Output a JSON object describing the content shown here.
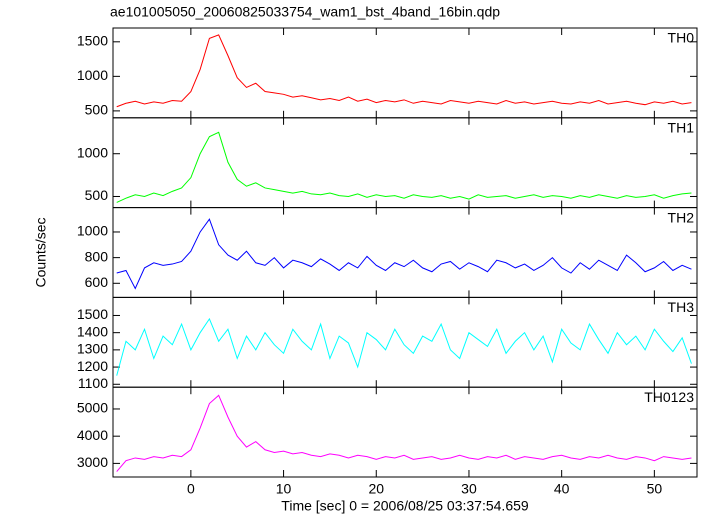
{
  "chart_data": [
    {
      "type": "line",
      "title": "ae101005050_20060825033754_wam1_bst_4band_16bin.qdp",
      "label": "TH0",
      "color": "#ff0000",
      "x": [
        -8,
        -7,
        -6,
        -5,
        -4,
        -3,
        -2,
        -1,
        0,
        1,
        2,
        3,
        4,
        5,
        6,
        7,
        8,
        9,
        10,
        11,
        12,
        13,
        14,
        15,
        16,
        17,
        18,
        19,
        20,
        21,
        22,
        23,
        24,
        25,
        26,
        27,
        28,
        29,
        30,
        31,
        32,
        33,
        34,
        35,
        36,
        37,
        38,
        39,
        40,
        41,
        42,
        43,
        44,
        45,
        46,
        47,
        48,
        49,
        50,
        51,
        52,
        53,
        54
      ],
      "values": [
        560,
        610,
        640,
        600,
        630,
        610,
        650,
        640,
        780,
        1100,
        1550,
        1600,
        1300,
        980,
        840,
        900,
        780,
        760,
        740,
        700,
        720,
        690,
        660,
        680,
        650,
        700,
        640,
        670,
        620,
        650,
        630,
        660,
        610,
        640,
        620,
        600,
        650,
        630,
        610,
        640,
        620,
        600,
        650,
        610,
        630,
        600,
        620,
        640,
        610,
        600,
        630,
        610,
        650,
        600,
        620,
        640,
        610,
        590,
        630,
        610,
        640,
        600,
        620
      ],
      "xlim": [
        -8.4,
        54.6
      ],
      "xticks": [
        0,
        10,
        20,
        30,
        40,
        50
      ],
      "ylim": [
        400,
        1700
      ],
      "yticks": [
        500,
        1000,
        1500
      ]
    },
    {
      "type": "line",
      "label": "TH1",
      "color": "#00ff00",
      "x": [
        -8,
        -7,
        -6,
        -5,
        -4,
        -3,
        -2,
        -1,
        0,
        1,
        2,
        3,
        4,
        5,
        6,
        7,
        8,
        9,
        10,
        11,
        12,
        13,
        14,
        15,
        16,
        17,
        18,
        19,
        20,
        21,
        22,
        23,
        24,
        25,
        26,
        27,
        28,
        29,
        30,
        31,
        32,
        33,
        34,
        35,
        36,
        37,
        38,
        39,
        40,
        41,
        42,
        43,
        44,
        45,
        46,
        47,
        48,
        49,
        50,
        51,
        52,
        53,
        54
      ],
      "values": [
        430,
        480,
        520,
        500,
        540,
        510,
        560,
        600,
        720,
        1000,
        1200,
        1250,
        900,
        700,
        620,
        660,
        600,
        580,
        560,
        540,
        560,
        530,
        520,
        540,
        510,
        500,
        530,
        490,
        520,
        500,
        510,
        480,
        520,
        500,
        490,
        510,
        480,
        500,
        470,
        520,
        490,
        500,
        510,
        480,
        500,
        520,
        490,
        510,
        500,
        480,
        510,
        490,
        520,
        500,
        480,
        510,
        490,
        500,
        520,
        480,
        510,
        530,
        540
      ],
      "xlim": [
        -8.4,
        54.6
      ],
      "xticks": [
        0,
        10,
        20,
        30,
        40,
        50
      ],
      "ylim": [
        370,
        1420
      ],
      "yticks": [
        500,
        1000
      ]
    },
    {
      "type": "line",
      "label": "TH2",
      "ylabel": "Counts/sec",
      "color": "#0000ff",
      "x": [
        -8,
        -7,
        -6,
        -5,
        -4,
        -3,
        -2,
        -1,
        0,
        1,
        2,
        3,
        4,
        5,
        6,
        7,
        8,
        9,
        10,
        11,
        12,
        13,
        14,
        15,
        16,
        17,
        18,
        19,
        20,
        21,
        22,
        23,
        24,
        25,
        26,
        27,
        28,
        29,
        30,
        31,
        32,
        33,
        34,
        35,
        36,
        37,
        38,
        39,
        40,
        41,
        42,
        43,
        44,
        45,
        46,
        47,
        48,
        49,
        50,
        51,
        52,
        53,
        54
      ],
      "values": [
        680,
        700,
        560,
        720,
        760,
        740,
        750,
        770,
        850,
        1000,
        1100,
        900,
        820,
        780,
        850,
        760,
        740,
        800,
        720,
        780,
        760,
        730,
        790,
        750,
        700,
        760,
        720,
        810,
        740,
        700,
        760,
        730,
        780,
        720,
        690,
        750,
        770,
        710,
        760,
        730,
        690,
        780,
        760,
        720,
        750,
        700,
        740,
        800,
        720,
        680,
        760,
        710,
        780,
        740,
        700,
        820,
        760,
        690,
        720,
        770,
        700,
        740,
        710
      ],
      "xlim": [
        -8.4,
        54.6
      ],
      "xticks": [
        0,
        10,
        20,
        30,
        40,
        50
      ],
      "ylim": [
        490,
        1190
      ],
      "yticks": [
        600,
        800,
        1000
      ]
    },
    {
      "type": "line",
      "label": "TH3",
      "color": "#00ffff",
      "x": [
        -8,
        -7,
        -6,
        -5,
        -4,
        -3,
        -2,
        -1,
        0,
        1,
        2,
        3,
        4,
        5,
        6,
        7,
        8,
        9,
        10,
        11,
        12,
        13,
        14,
        15,
        16,
        17,
        18,
        19,
        20,
        21,
        22,
        23,
        24,
        25,
        26,
        27,
        28,
        29,
        30,
        31,
        32,
        33,
        34,
        35,
        36,
        37,
        38,
        39,
        40,
        41,
        42,
        43,
        44,
        45,
        46,
        47,
        48,
        49,
        50,
        51,
        52,
        53,
        54
      ],
      "values": [
        1150,
        1350,
        1300,
        1420,
        1250,
        1380,
        1330,
        1450,
        1300,
        1400,
        1480,
        1350,
        1420,
        1250,
        1380,
        1300,
        1400,
        1330,
        1280,
        1420,
        1350,
        1300,
        1450,
        1250,
        1380,
        1340,
        1200,
        1400,
        1360,
        1300,
        1420,
        1330,
        1280,
        1380,
        1350,
        1450,
        1300,
        1250,
        1400,
        1360,
        1320,
        1420,
        1280,
        1350,
        1400,
        1300,
        1380,
        1230,
        1420,
        1340,
        1300,
        1450,
        1360,
        1280,
        1400,
        1330,
        1380,
        1300,
        1420,
        1350,
        1290,
        1370,
        1220
      ],
      "xlim": [
        -8.4,
        54.6
      ],
      "xticks": [
        0,
        10,
        20,
        30,
        40,
        50
      ],
      "ylim": [
        1083,
        1605
      ],
      "yticks": [
        1100,
        1200,
        1300,
        1400,
        1500
      ]
    },
    {
      "type": "line",
      "label": "TH0123",
      "xlabel": "Time [sec] 0 = 2006/08/25 03:37:54.659",
      "color": "#ff00ff",
      "x": [
        -8,
        -7,
        -6,
        -5,
        -4,
        -3,
        -2,
        -1,
        0,
        1,
        2,
        3,
        4,
        5,
        6,
        7,
        8,
        9,
        10,
        11,
        12,
        13,
        14,
        15,
        16,
        17,
        18,
        19,
        20,
        21,
        22,
        23,
        24,
        25,
        26,
        27,
        28,
        29,
        30,
        31,
        32,
        33,
        34,
        35,
        36,
        37,
        38,
        39,
        40,
        41,
        42,
        43,
        44,
        45,
        46,
        47,
        48,
        49,
        50,
        51,
        52,
        53,
        54
      ],
      "values": [
        2700,
        3100,
        3200,
        3150,
        3250,
        3200,
        3300,
        3250,
        3500,
        4300,
        5200,
        5500,
        4700,
        4000,
        3600,
        3800,
        3500,
        3400,
        3450,
        3350,
        3400,
        3300,
        3250,
        3350,
        3300,
        3200,
        3300,
        3250,
        3150,
        3250,
        3200,
        3300,
        3150,
        3200,
        3250,
        3150,
        3200,
        3300,
        3200,
        3150,
        3250,
        3200,
        3300,
        3150,
        3250,
        3200,
        3150,
        3250,
        3300,
        3200,
        3150,
        3250,
        3200,
        3300,
        3200,
        3150,
        3250,
        3200,
        3100,
        3250,
        3200,
        3150,
        3200
      ],
      "xlim": [
        -8.4,
        54.6
      ],
      "xticks": [
        0,
        10,
        20,
        30,
        40,
        50
      ],
      "ylim": [
        2500,
        5800
      ],
      "yticks": [
        3000,
        4000,
        5000
      ]
    }
  ]
}
